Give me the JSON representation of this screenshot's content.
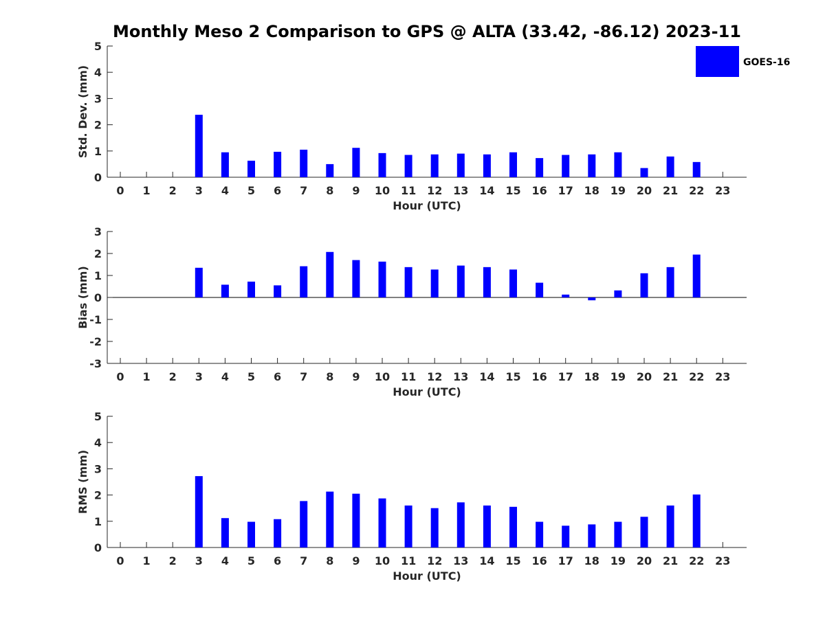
{
  "colors": {
    "bar": "#0000ff",
    "axis": "#262626",
    "background": "#ffffff"
  },
  "chart_data": {
    "title": "Monthly Meso 2 Comparison to GPS @ ALTA (33.42, -86.12) 2023-11",
    "legend": {
      "label": "GOES-16",
      "placement": "top-right"
    },
    "hours": [
      0,
      1,
      2,
      3,
      4,
      5,
      6,
      7,
      8,
      9,
      10,
      11,
      12,
      13,
      14,
      15,
      16,
      17,
      18,
      19,
      20,
      21,
      22,
      23
    ],
    "panels": [
      {
        "type": "bar",
        "name": "std-dev",
        "xlabel": "Hour (UTC)",
        "ylabel": "Std. Dev. (mm)",
        "ylim": [
          0,
          5
        ],
        "yticks": [
          0,
          1,
          2,
          3,
          4,
          5
        ],
        "values": [
          null,
          null,
          null,
          2.38,
          0.95,
          0.63,
          0.97,
          1.05,
          0.5,
          1.12,
          0.92,
          0.85,
          0.87,
          0.9,
          0.87,
          0.95,
          0.73,
          0.85,
          0.87,
          0.95,
          0.35,
          0.79,
          0.58,
          null
        ]
      },
      {
        "type": "bar",
        "name": "bias",
        "xlabel": "Hour (UTC)",
        "ylabel": "Bias (mm)",
        "ylim": [
          -3,
          3
        ],
        "yticks": [
          -3,
          -2,
          -1,
          0,
          1,
          2,
          3
        ],
        "values": [
          null,
          null,
          null,
          1.35,
          0.58,
          0.72,
          0.55,
          1.42,
          2.07,
          1.7,
          1.63,
          1.38,
          1.27,
          1.45,
          1.38,
          1.27,
          0.67,
          0.13,
          -0.13,
          0.32,
          1.1,
          1.38,
          1.95,
          null
        ]
      },
      {
        "type": "bar",
        "name": "rms",
        "xlabel": "Hour (UTC)",
        "ylabel": "RMS (mm)",
        "ylim": [
          0,
          5
        ],
        "yticks": [
          0,
          1,
          2,
          3,
          4,
          5
        ],
        "values": [
          null,
          null,
          null,
          2.72,
          1.12,
          0.98,
          1.08,
          1.77,
          2.13,
          2.05,
          1.87,
          1.6,
          1.5,
          1.72,
          1.6,
          1.55,
          0.98,
          0.83,
          0.88,
          0.98,
          1.17,
          1.6,
          2.02,
          null
        ]
      }
    ]
  }
}
